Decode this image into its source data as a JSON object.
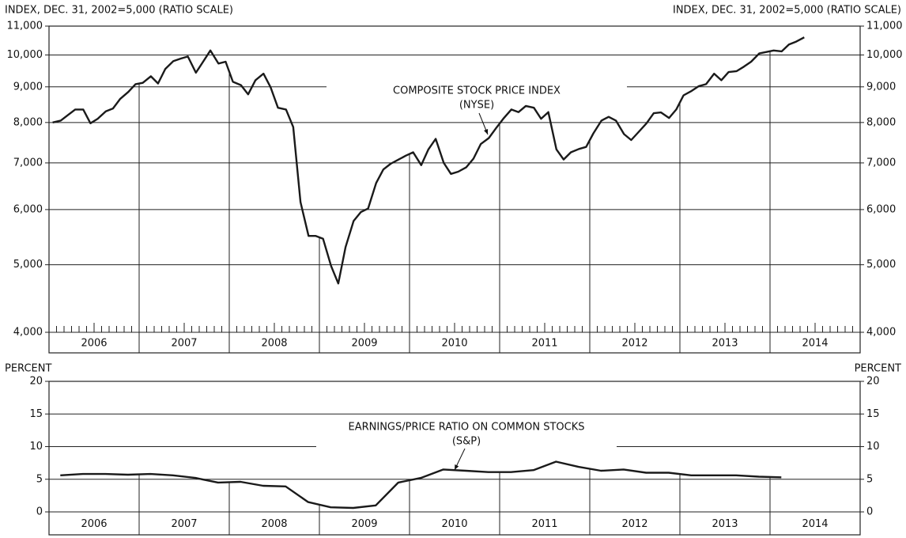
{
  "chart_data": [
    {
      "type": "line",
      "log_scale": true,
      "grid": true,
      "color": "#1a1a1a",
      "ylabel": "INDEX, DEC. 31, 2002=5,000 (RATIO SCALE)",
      "annotations": [
        "COMPOSITE STOCK PRICE INDEX",
        "(NYSE)"
      ],
      "categories": [
        "2006",
        "2007",
        "2008",
        "2009",
        "2010",
        "2011",
        "2012",
        "2013",
        "2014"
      ],
      "xlim": [
        2006,
        2015
      ],
      "xticks": [
        2007,
        2008,
        2009,
        2010,
        2011,
        2012,
        2013,
        2014
      ],
      "ylim": [
        4000,
        11000
      ],
      "yticks": [
        {
          "value": 4000,
          "label": "4,000"
        },
        {
          "value": 5000,
          "label": "5,000"
        },
        {
          "value": 6000,
          "label": "6,000"
        },
        {
          "value": 7000,
          "label": "7,000"
        },
        {
          "value": 8000,
          "label": "8,000"
        },
        {
          "value": 9000,
          "label": "9,000"
        },
        {
          "value": 10000,
          "label": "10,000"
        },
        {
          "value": 11000,
          "label": "11,000"
        }
      ],
      "x": [
        2006.04,
        2006.13,
        2006.21,
        2006.29,
        2006.38,
        2006.46,
        2006.54,
        2006.63,
        2006.71,
        2006.79,
        2006.88,
        2006.96,
        2007.04,
        2007.13,
        2007.21,
        2007.29,
        2007.38,
        2007.46,
        2007.54,
        2007.63,
        2007.71,
        2007.79,
        2007.88,
        2007.96,
        2008.04,
        2008.13,
        2008.21,
        2008.29,
        2008.38,
        2008.46,
        2008.54,
        2008.63,
        2008.71,
        2008.79,
        2008.88,
        2008.96,
        2009.04,
        2009.13,
        2009.21,
        2009.29,
        2009.38,
        2009.46,
        2009.54,
        2009.63,
        2009.71,
        2009.79,
        2009.88,
        2009.96,
        2010.04,
        2010.13,
        2010.21,
        2010.29,
        2010.38,
        2010.46,
        2010.54,
        2010.63,
        2010.71,
        2010.79,
        2010.88,
        2010.96,
        2011.04,
        2011.13,
        2011.21,
        2011.29,
        2011.38,
        2011.46,
        2011.54,
        2011.63,
        2011.71,
        2011.79,
        2011.88,
        2011.96,
        2012.04,
        2012.13,
        2012.21,
        2012.29,
        2012.38,
        2012.46,
        2012.54,
        2012.63,
        2012.71,
        2012.79,
        2012.88,
        2012.96,
        2013.04,
        2013.13,
        2013.21,
        2013.29,
        2013.38,
        2013.46,
        2013.54,
        2013.63,
        2013.71,
        2013.79,
        2013.88,
        2013.96,
        2014.04,
        2014.13,
        2014.21,
        2014.29,
        2014.38
      ],
      "values": [
        8000,
        8050,
        8200,
        8350,
        8350,
        7980,
        8100,
        8300,
        8380,
        8650,
        8850,
        9080,
        9120,
        9320,
        9100,
        9550,
        9800,
        9880,
        9950,
        9430,
        9780,
        10150,
        9720,
        9780,
        9150,
        9050,
        8780,
        9200,
        9400,
        8980,
        8400,
        8350,
        7880,
        6150,
        5500,
        5500,
        5450,
        4980,
        4700,
        5300,
        5780,
        5950,
        6020,
        6550,
        6850,
        6980,
        7080,
        7170,
        7250,
        6950,
        7320,
        7580,
        7000,
        6750,
        6800,
        6900,
        7100,
        7450,
        7600,
        7850,
        8100,
        8350,
        8280,
        8450,
        8400,
        8100,
        8280,
        7320,
        7080,
        7250,
        7330,
        7380,
        7720,
        8050,
        8150,
        8050,
        7700,
        7550,
        7750,
        7980,
        8250,
        8270,
        8120,
        8350,
        8750,
        8880,
        9020,
        9080,
        9400,
        9200,
        9450,
        9480,
        9620,
        9780,
        10050,
        10100,
        10150,
        10120,
        10350,
        10450,
        10600
      ]
    },
    {
      "type": "line",
      "log_scale": false,
      "grid": true,
      "color": "#1a1a1a",
      "ylabel": "PERCENT",
      "annotations": [
        "EARNINGS/PRICE RATIO ON COMMON STOCKS",
        "(S&P)"
      ],
      "categories": [
        "2006",
        "2007",
        "2008",
        "2009",
        "2010",
        "2011",
        "2012",
        "2013",
        "2014"
      ],
      "xlim": [
        2006,
        2015
      ],
      "xticks": [
        2007,
        2008,
        2009,
        2010,
        2011,
        2012,
        2013,
        2014
      ],
      "ylim": [
        0,
        20
      ],
      "yticks": [
        0,
        5,
        10,
        15,
        20
      ],
      "x": [
        2006.125,
        2006.375,
        2006.625,
        2006.875,
        2007.125,
        2007.375,
        2007.625,
        2007.875,
        2008.125,
        2008.375,
        2008.625,
        2008.875,
        2009.125,
        2009.375,
        2009.625,
        2009.875,
        2010.125,
        2010.375,
        2010.625,
        2010.875,
        2011.125,
        2011.375,
        2011.625,
        2011.875,
        2012.125,
        2012.375,
        2012.625,
        2012.875,
        2013.125,
        2013.375,
        2013.625,
        2013.875,
        2014.125
      ],
      "values": [
        5.6,
        5.8,
        5.8,
        5.7,
        5.8,
        5.6,
        5.2,
        4.5,
        4.6,
        4.0,
        3.9,
        1.5,
        0.7,
        0.6,
        1.0,
        4.5,
        5.2,
        6.5,
        6.3,
        6.1,
        6.1,
        6.4,
        7.7,
        6.9,
        6.3,
        6.5,
        6.0,
        6.0,
        5.6,
        5.6,
        5.6,
        5.4,
        5.3
      ]
    }
  ]
}
